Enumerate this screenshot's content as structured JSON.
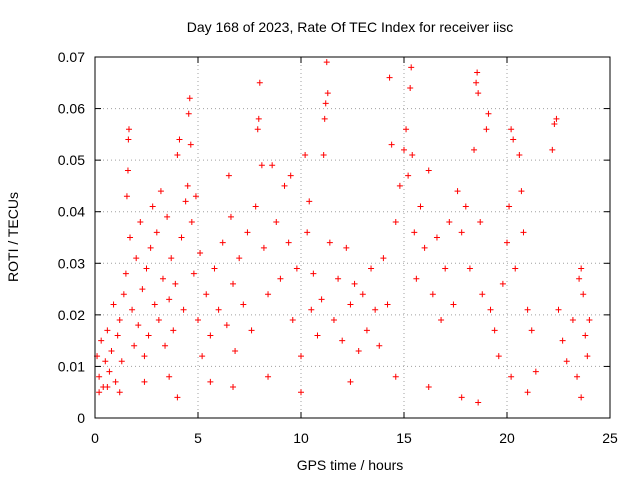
{
  "chart_data": {
    "type": "scatter",
    "title": "Day 168 of 2023, Rate Of TEC Index for receiver iisc",
    "xlabel": "GPS time / hours",
    "ylabel": "ROTI / TECUs",
    "xlim": [
      0,
      25
    ],
    "ylim": [
      0,
      0.07
    ],
    "x_ticks": [
      "0",
      "5",
      "10",
      "15",
      "20",
      "25"
    ],
    "y_ticks": [
      "0",
      "0.01",
      "0.02",
      "0.03",
      "0.04",
      "0.05",
      "0.06",
      "0.07"
    ],
    "grid": true,
    "marker": "plus",
    "color": "#ff0000",
    "series": [
      {
        "points": [
          [
            0.1,
            0.012
          ],
          [
            0.2,
            0.008
          ],
          [
            0.3,
            0.015
          ],
          [
            0.4,
            0.006
          ],
          [
            0.5,
            0.011
          ],
          [
            0.6,
            0.017
          ],
          [
            0.7,
            0.009
          ],
          [
            0.8,
            0.013
          ],
          [
            0.9,
            0.022
          ],
          [
            1.0,
            0.007
          ],
          [
            1.1,
            0.016
          ],
          [
            1.2,
            0.019
          ],
          [
            1.3,
            0.011
          ],
          [
            1.4,
            0.024
          ],
          [
            1.5,
            0.028
          ],
          [
            1.55,
            0.043
          ],
          [
            1.6,
            0.048
          ],
          [
            1.62,
            0.054
          ],
          [
            1.65,
            0.056
          ],
          [
            1.7,
            0.035
          ],
          [
            1.8,
            0.021
          ],
          [
            1.9,
            0.014
          ],
          [
            2.0,
            0.031
          ],
          [
            2.1,
            0.018
          ],
          [
            2.2,
            0.038
          ],
          [
            2.3,
            0.025
          ],
          [
            2.4,
            0.012
          ],
          [
            2.5,
            0.029
          ],
          [
            2.6,
            0.016
          ],
          [
            2.7,
            0.033
          ],
          [
            2.8,
            0.041
          ],
          [
            2.9,
            0.022
          ],
          [
            3.0,
            0.036
          ],
          [
            3.1,
            0.019
          ],
          [
            3.2,
            0.044
          ],
          [
            3.3,
            0.027
          ],
          [
            3.4,
            0.014
          ],
          [
            3.5,
            0.039
          ],
          [
            3.6,
            0.023
          ],
          [
            3.7,
            0.031
          ],
          [
            3.8,
            0.017
          ],
          [
            3.9,
            0.026
          ],
          [
            4.0,
            0.051
          ],
          [
            4.1,
            0.054
          ],
          [
            4.2,
            0.035
          ],
          [
            4.3,
            0.021
          ],
          [
            4.4,
            0.042
          ],
          [
            4.5,
            0.045
          ],
          [
            4.55,
            0.059
          ],
          [
            4.6,
            0.062
          ],
          [
            4.65,
            0.053
          ],
          [
            4.7,
            0.038
          ],
          [
            4.8,
            0.028
          ],
          [
            4.9,
            0.043
          ],
          [
            5.0,
            0.019
          ],
          [
            5.1,
            0.032
          ],
          [
            5.2,
            0.012
          ],
          [
            5.4,
            0.024
          ],
          [
            5.6,
            0.016
          ],
          [
            5.8,
            0.029
          ],
          [
            6.0,
            0.021
          ],
          [
            6.2,
            0.034
          ],
          [
            6.4,
            0.018
          ],
          [
            6.5,
            0.047
          ],
          [
            6.6,
            0.039
          ],
          [
            6.7,
            0.026
          ],
          [
            6.8,
            0.013
          ],
          [
            7.0,
            0.031
          ],
          [
            7.2,
            0.022
          ],
          [
            7.4,
            0.036
          ],
          [
            7.6,
            0.017
          ],
          [
            7.8,
            0.041
          ],
          [
            7.9,
            0.056
          ],
          [
            7.95,
            0.058
          ],
          [
            8.0,
            0.065
          ],
          [
            8.1,
            0.049
          ],
          [
            8.2,
            0.033
          ],
          [
            8.4,
            0.024
          ],
          [
            8.6,
            0.049
          ],
          [
            8.8,
            0.038
          ],
          [
            9.0,
            0.027
          ],
          [
            9.2,
            0.045
          ],
          [
            9.4,
            0.034
          ],
          [
            9.5,
            0.047
          ],
          [
            9.6,
            0.019
          ],
          [
            9.8,
            0.029
          ],
          [
            10.0,
            0.012
          ],
          [
            10.2,
            0.051
          ],
          [
            10.3,
            0.036
          ],
          [
            10.4,
            0.042
          ],
          [
            10.5,
            0.021
          ],
          [
            10.6,
            0.028
          ],
          [
            10.8,
            0.016
          ],
          [
            11.0,
            0.023
          ],
          [
            11.1,
            0.051
          ],
          [
            11.15,
            0.058
          ],
          [
            11.2,
            0.061
          ],
          [
            11.25,
            0.069
          ],
          [
            11.3,
            0.063
          ],
          [
            11.4,
            0.034
          ],
          [
            11.6,
            0.019
          ],
          [
            11.8,
            0.027
          ],
          [
            12.0,
            0.015
          ],
          [
            12.2,
            0.033
          ],
          [
            12.4,
            0.022
          ],
          [
            12.6,
            0.026
          ],
          [
            12.8,
            0.013
          ],
          [
            13.0,
            0.024
          ],
          [
            13.2,
            0.017
          ],
          [
            13.4,
            0.029
          ],
          [
            13.6,
            0.021
          ],
          [
            13.8,
            0.014
          ],
          [
            14.0,
            0.031
          ],
          [
            14.2,
            0.022
          ],
          [
            14.3,
            0.066
          ],
          [
            14.4,
            0.053
          ],
          [
            14.6,
            0.038
          ],
          [
            14.8,
            0.045
          ],
          [
            15.0,
            0.052
          ],
          [
            15.1,
            0.056
          ],
          [
            15.2,
            0.047
          ],
          [
            15.3,
            0.064
          ],
          [
            15.35,
            0.068
          ],
          [
            15.4,
            0.051
          ],
          [
            15.5,
            0.036
          ],
          [
            15.6,
            0.027
          ],
          [
            15.8,
            0.041
          ],
          [
            16.0,
            0.033
          ],
          [
            16.2,
            0.048
          ],
          [
            16.4,
            0.024
          ],
          [
            16.6,
            0.035
          ],
          [
            16.8,
            0.019
          ],
          [
            17.0,
            0.029
          ],
          [
            17.2,
            0.038
          ],
          [
            17.4,
            0.022
          ],
          [
            17.6,
            0.044
          ],
          [
            17.8,
            0.036
          ],
          [
            18.0,
            0.041
          ],
          [
            18.2,
            0.029
          ],
          [
            18.4,
            0.052
          ],
          [
            18.5,
            0.065
          ],
          [
            18.55,
            0.067
          ],
          [
            18.6,
            0.063
          ],
          [
            18.7,
            0.038
          ],
          [
            18.8,
            0.024
          ],
          [
            19.0,
            0.056
          ],
          [
            19.1,
            0.059
          ],
          [
            19.2,
            0.021
          ],
          [
            19.4,
            0.017
          ],
          [
            19.6,
            0.012
          ],
          [
            19.8,
            0.026
          ],
          [
            20.0,
            0.034
          ],
          [
            20.1,
            0.041
          ],
          [
            20.2,
            0.056
          ],
          [
            20.3,
            0.054
          ],
          [
            20.4,
            0.029
          ],
          [
            20.6,
            0.051
          ],
          [
            20.7,
            0.044
          ],
          [
            20.8,
            0.036
          ],
          [
            21.0,
            0.021
          ],
          [
            21.2,
            0.017
          ],
          [
            21.4,
            0.009
          ],
          [
            22.2,
            0.052
          ],
          [
            22.3,
            0.057
          ],
          [
            22.4,
            0.058
          ],
          [
            22.5,
            0.021
          ],
          [
            22.7,
            0.015
          ],
          [
            22.9,
            0.011
          ],
          [
            23.2,
            0.019
          ],
          [
            23.4,
            0.008
          ],
          [
            23.5,
            0.027
          ],
          [
            23.6,
            0.029
          ],
          [
            23.7,
            0.024
          ],
          [
            23.8,
            0.016
          ],
          [
            23.9,
            0.012
          ],
          [
            24.0,
            0.019
          ],
          [
            0.2,
            0.005
          ],
          [
            0.6,
            0.006
          ],
          [
            1.2,
            0.005
          ],
          [
            2.4,
            0.007
          ],
          [
            3.6,
            0.008
          ],
          [
            4.0,
            0.004
          ],
          [
            5.6,
            0.007
          ],
          [
            6.7,
            0.006
          ],
          [
            8.4,
            0.008
          ],
          [
            10.0,
            0.005
          ],
          [
            12.4,
            0.007
          ],
          [
            14.6,
            0.008
          ],
          [
            16.2,
            0.006
          ],
          [
            17.8,
            0.004
          ],
          [
            18.6,
            0.003
          ],
          [
            20.2,
            0.008
          ],
          [
            21.0,
            0.005
          ],
          [
            23.6,
            0.004
          ]
        ]
      }
    ]
  }
}
